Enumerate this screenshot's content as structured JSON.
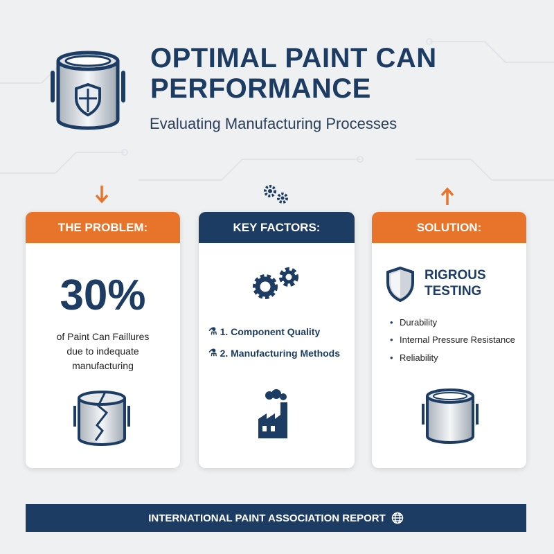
{
  "header": {
    "title_line1": "OPTIMAL PAINT CAN",
    "title_line2": "PERFORMANCE",
    "subtitle": "Evaluating Manufacturing Processes"
  },
  "colors": {
    "navy": "#1d3c63",
    "orange": "#e8732a"
  },
  "cards": [
    {
      "header": "THE PROBLEM:",
      "stat": "30%",
      "desc_lines": [
        "of Paint Can Faillures",
        "due to indequate",
        "manufacturing"
      ],
      "icon": "cracked-can-icon",
      "top_icon": "arrow-down-icon"
    },
    {
      "header": "KEY FACTORS:",
      "items": [
        "1. Component Quality",
        "2. Manufacturing Methods"
      ],
      "icon": "factory-icon",
      "top_icon": "gears-icon"
    },
    {
      "header": "SOLUTION:",
      "title_lines": [
        "RIGROUS",
        "TESTING"
      ],
      "bullets": [
        "Durability",
        "Internal Pressure Resistance",
        "Reliability"
      ],
      "icon": "paint-can-icon",
      "top_icon": "arrow-up-icon"
    }
  ],
  "footer": {
    "text": "INTERNATIONAL PAINT ASSOCIATION REPORT",
    "icon": "globe-icon"
  }
}
